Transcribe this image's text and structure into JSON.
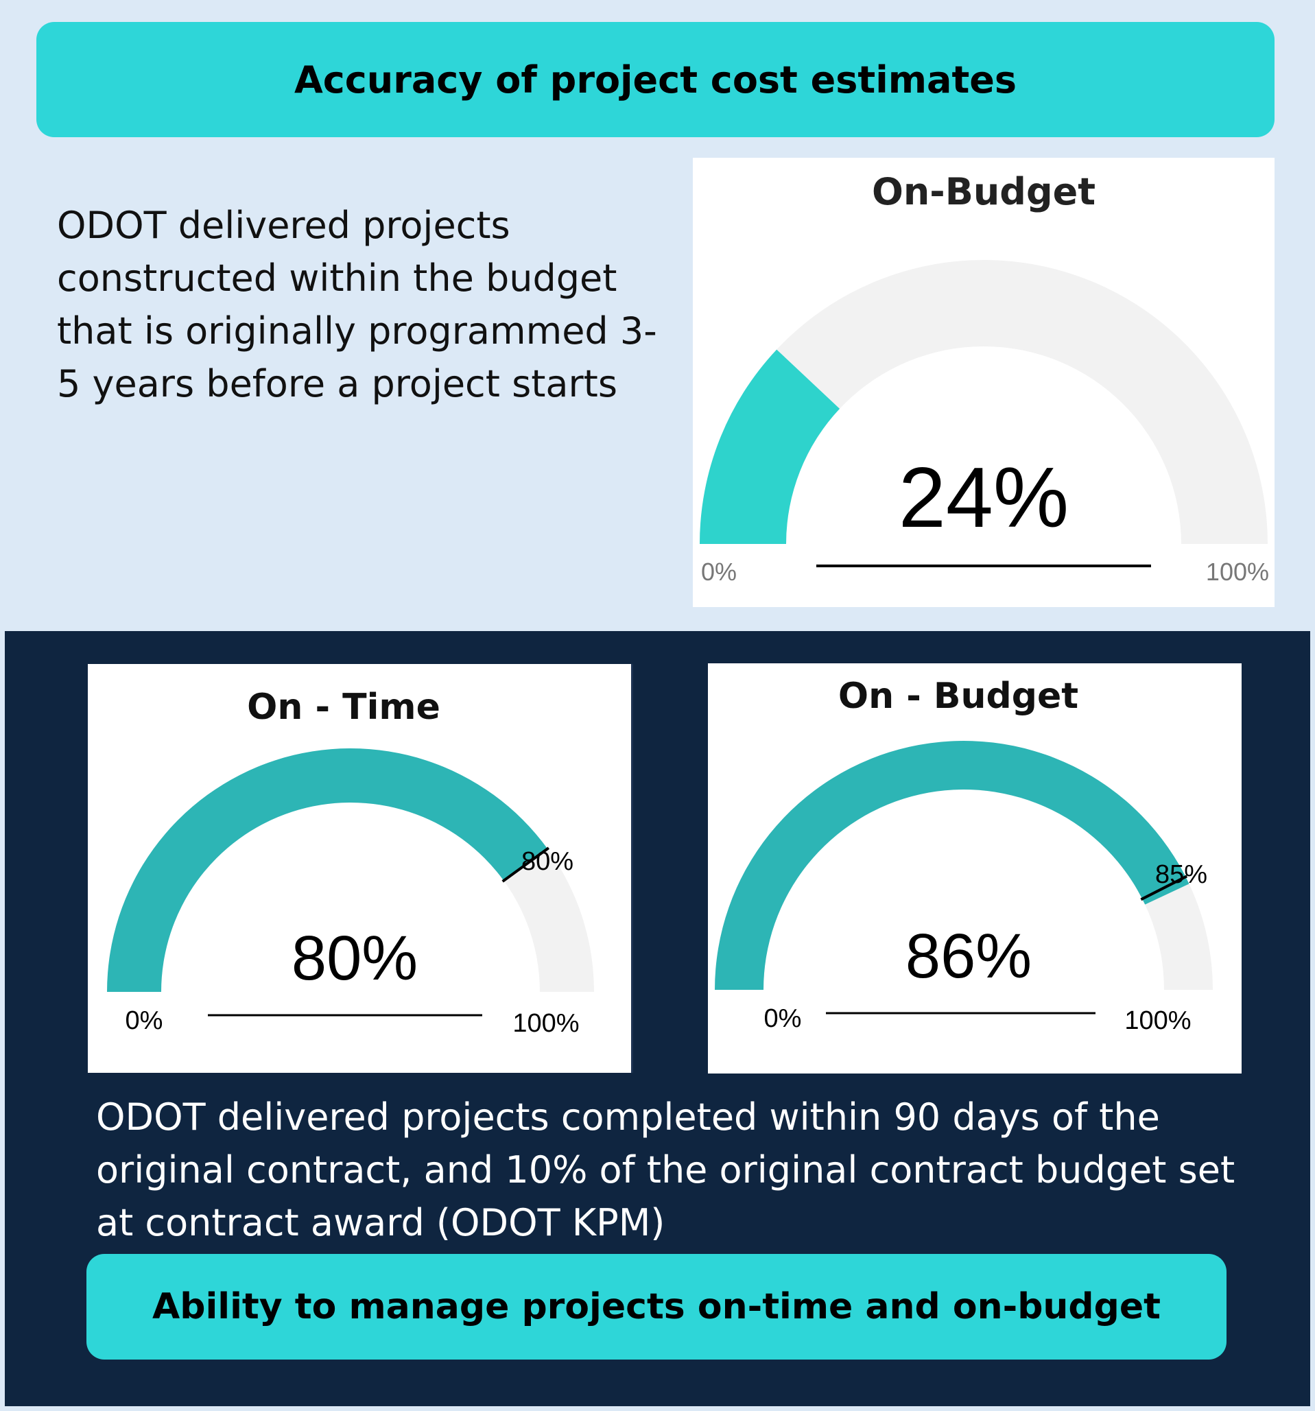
{
  "header": {
    "title": "Accuracy of project cost estimates"
  },
  "intro": {
    "text": "ODOT delivered projects constructed within the budget that is originally programmed 3-5 years before a project starts"
  },
  "footer": {
    "text": "ODOT delivered projects completed within 90 days of the original contract, and 10% of the original contract budget set at contract award (ODOT KPM)",
    "title": "Ability to manage projects on-time and on-budget"
  },
  "colors": {
    "accent": "#2ed6d8",
    "gauge_fill_top": "#2ed3cc",
    "gauge_fill_bottom": "#2db5b5",
    "gauge_track": "#f2f2f2",
    "navy": "#0f2540",
    "page_bg": "#dce9f6"
  },
  "chart_data": [
    {
      "type": "gauge",
      "title": "On-Budget",
      "value": 24,
      "value_label": "24%",
      "min_label": "0%",
      "max_label": "100%",
      "range": [
        0,
        100
      ]
    },
    {
      "type": "gauge",
      "title": "On - Time",
      "value": 80,
      "value_label": "80%",
      "min_label": "0%",
      "max_label": "100%",
      "target": 80,
      "target_label": "80%",
      "range": [
        0,
        100
      ]
    },
    {
      "type": "gauge",
      "title": "On - Budget",
      "value": 86,
      "value_label": "86%",
      "min_label": "0%",
      "max_label": "100%",
      "target": 85,
      "target_label": "85%",
      "range": [
        0,
        100
      ]
    }
  ]
}
